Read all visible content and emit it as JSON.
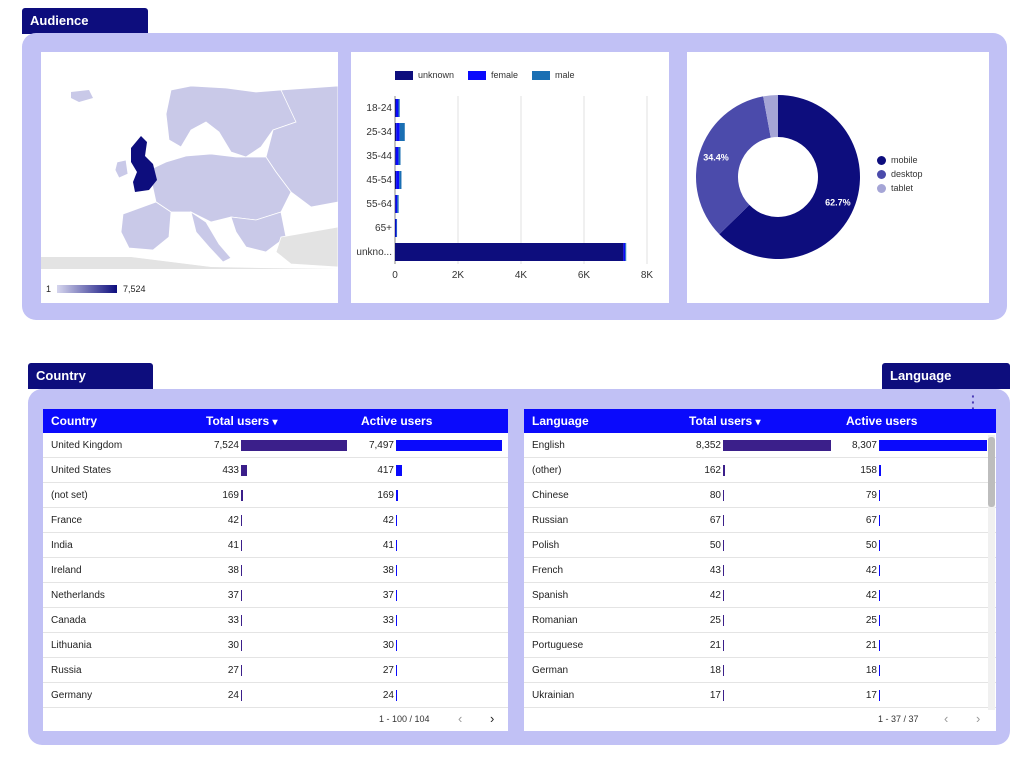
{
  "sections": {
    "audience": "Audience",
    "country": "Country",
    "language": "Language"
  },
  "map": {
    "legend_min": "1",
    "legend_max": "7,524",
    "highlight_color": "#0d0d7d",
    "base_color": "#c9c9e8"
  },
  "age_chart": {
    "chart_data": {
      "type": "bar",
      "orientation": "horizontal",
      "stacked": true,
      "categories": [
        "18-24",
        "25-34",
        "35-44",
        "45-54",
        "55-64",
        "65+",
        "unkno..."
      ],
      "series": [
        {
          "name": "unknown",
          "color": "#0d0d7d",
          "values": [
            30,
            40,
            25,
            35,
            20,
            15,
            7250
          ]
        },
        {
          "name": "female",
          "color": "#0a0afc",
          "values": [
            80,
            110,
            90,
            100,
            55,
            30,
            60
          ]
        },
        {
          "name": "male",
          "color": "#1a6fb3",
          "values": [
            40,
            160,
            60,
            70,
            40,
            20,
            30
          ]
        }
      ],
      "x_ticks": [
        "0",
        "2K",
        "4K",
        "6K",
        "8K"
      ],
      "xlim": [
        0,
        8000
      ],
      "legend_position": "top"
    }
  },
  "device_chart": {
    "chart_data": {
      "type": "pie",
      "donut": true,
      "slices": [
        {
          "name": "mobile",
          "value": 62.7,
          "color": "#0d0d7d",
          "label": "62.7%"
        },
        {
          "name": "desktop",
          "value": 34.4,
          "color": "#4b4bab",
          "label": "34.4%"
        },
        {
          "name": "tablet",
          "value": 2.9,
          "color": "#a5a5d6",
          "label": ""
        }
      ],
      "legend_position": "right"
    }
  },
  "country_table": {
    "headers": {
      "name": "Country",
      "total": "Total users",
      "active": "Active users"
    },
    "sort_indicator": "▾",
    "max_total": 7524,
    "max_active": 7497,
    "rows": [
      {
        "name": "United Kingdom",
        "total": "7,524",
        "total_v": 7524,
        "active": "7,497",
        "active_v": 7497
      },
      {
        "name": "United States",
        "total": "433",
        "total_v": 433,
        "active": "417",
        "active_v": 417
      },
      {
        "name": "(not set)",
        "total": "169",
        "total_v": 169,
        "active": "169",
        "active_v": 169
      },
      {
        "name": "France",
        "total": "42",
        "total_v": 42,
        "active": "42",
        "active_v": 42
      },
      {
        "name": "India",
        "total": "41",
        "total_v": 41,
        "active": "41",
        "active_v": 41
      },
      {
        "name": "Ireland",
        "total": "38",
        "total_v": 38,
        "active": "38",
        "active_v": 38
      },
      {
        "name": "Netherlands",
        "total": "37",
        "total_v": 37,
        "active": "37",
        "active_v": 37
      },
      {
        "name": "Canada",
        "total": "33",
        "total_v": 33,
        "active": "33",
        "active_v": 33
      },
      {
        "name": "Lithuania",
        "total": "30",
        "total_v": 30,
        "active": "30",
        "active_v": 30
      },
      {
        "name": "Russia",
        "total": "27",
        "total_v": 27,
        "active": "27",
        "active_v": 27
      },
      {
        "name": "Germany",
        "total": "24",
        "total_v": 24,
        "active": "24",
        "active_v": 24
      }
    ],
    "pager": "1 - 100 / 104"
  },
  "language_table": {
    "headers": {
      "name": "Language",
      "total": "Total users",
      "active": "Active users"
    },
    "sort_indicator": "▾",
    "max_total": 8352,
    "max_active": 8307,
    "rows": [
      {
        "name": "English",
        "total": "8,352",
        "total_v": 8352,
        "active": "8,307",
        "active_v": 8307
      },
      {
        "name": "(other)",
        "total": "162",
        "total_v": 162,
        "active": "158",
        "active_v": 158
      },
      {
        "name": "Chinese",
        "total": "80",
        "total_v": 80,
        "active": "79",
        "active_v": 79
      },
      {
        "name": "Russian",
        "total": "67",
        "total_v": 67,
        "active": "67",
        "active_v": 67
      },
      {
        "name": "Polish",
        "total": "50",
        "total_v": 50,
        "active": "50",
        "active_v": 50
      },
      {
        "name": "French",
        "total": "43",
        "total_v": 43,
        "active": "42",
        "active_v": 42
      },
      {
        "name": "Spanish",
        "total": "42",
        "total_v": 42,
        "active": "42",
        "active_v": 42
      },
      {
        "name": "Romanian",
        "total": "25",
        "total_v": 25,
        "active": "25",
        "active_v": 25
      },
      {
        "name": "Portuguese",
        "total": "21",
        "total_v": 21,
        "active": "21",
        "active_v": 21
      },
      {
        "name": "German",
        "total": "18",
        "total_v": 18,
        "active": "18",
        "active_v": 18
      },
      {
        "name": "Ukrainian",
        "total": "17",
        "total_v": 17,
        "active": "17",
        "active_v": 17
      }
    ],
    "pager": "1 - 37 / 37"
  },
  "pager_icons": {
    "prev": "‹",
    "next": "›"
  },
  "colors": {
    "total_bar": "#3b1f8a",
    "active_bar": "#0a0afc",
    "header_bg": "#0a0afc",
    "panel_bg": "#c1c1f5"
  }
}
